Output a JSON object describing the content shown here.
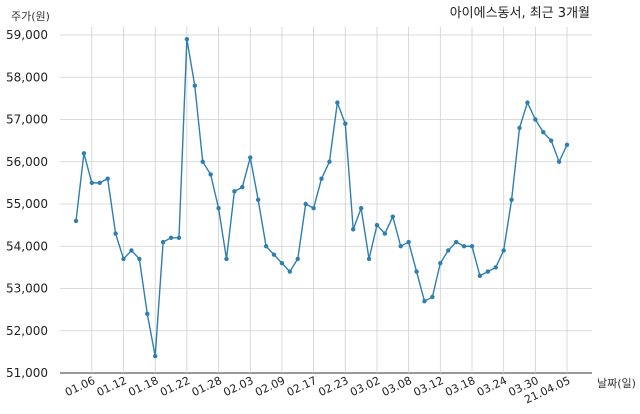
{
  "chart_data": {
    "type": "line",
    "title": "아이에스동서, 최근 3개월",
    "ylabel": "주가(원)",
    "xlabel": "날짜(일)",
    "ylim": [
      51000,
      59000
    ],
    "yticks": [
      51000,
      52000,
      53000,
      54000,
      55000,
      56000,
      57000,
      58000,
      59000
    ],
    "ytick_labels": [
      "51,000",
      "52,000",
      "53,000",
      "54,000",
      "55,000",
      "56,000",
      "57,000",
      "58,000",
      "59,000"
    ],
    "xtick_labels": [
      "01.06",
      "01.12",
      "01.18",
      "01.22",
      "01.28",
      "02.03",
      "02.09",
      "02.17",
      "02.23",
      "03.02",
      "03.08",
      "03.12",
      "03.18",
      "03.24",
      "03.30",
      "21.04.05"
    ],
    "xtick_index": [
      2,
      6,
      10,
      14,
      18,
      22,
      26,
      30,
      34,
      38,
      42,
      46,
      50,
      54,
      58,
      62
    ],
    "grid": true,
    "color": "#2e7fb0",
    "series": [
      {
        "values": [
          54600,
          56200,
          55500,
          55500,
          55600,
          54300,
          53700,
          53900,
          53700,
          52400,
          51400,
          54100,
          54200,
          54200,
          58900,
          57800,
          56000,
          55700,
          54900,
          53700,
          55300,
          55400,
          56100,
          55100,
          54000,
          53800,
          53600,
          53400,
          53700,
          55000,
          54900,
          55600,
          56000,
          57400,
          56900,
          54400,
          54900,
          53700,
          54500,
          54300,
          54700,
          54000,
          54100,
          53400,
          52700,
          52800,
          53600,
          53900,
          54100,
          54000,
          54000,
          53300,
          53400,
          53500,
          53900,
          55100,
          56800,
          57400,
          57000,
          56700,
          56500,
          56000,
          56400
        ]
      }
    ]
  }
}
